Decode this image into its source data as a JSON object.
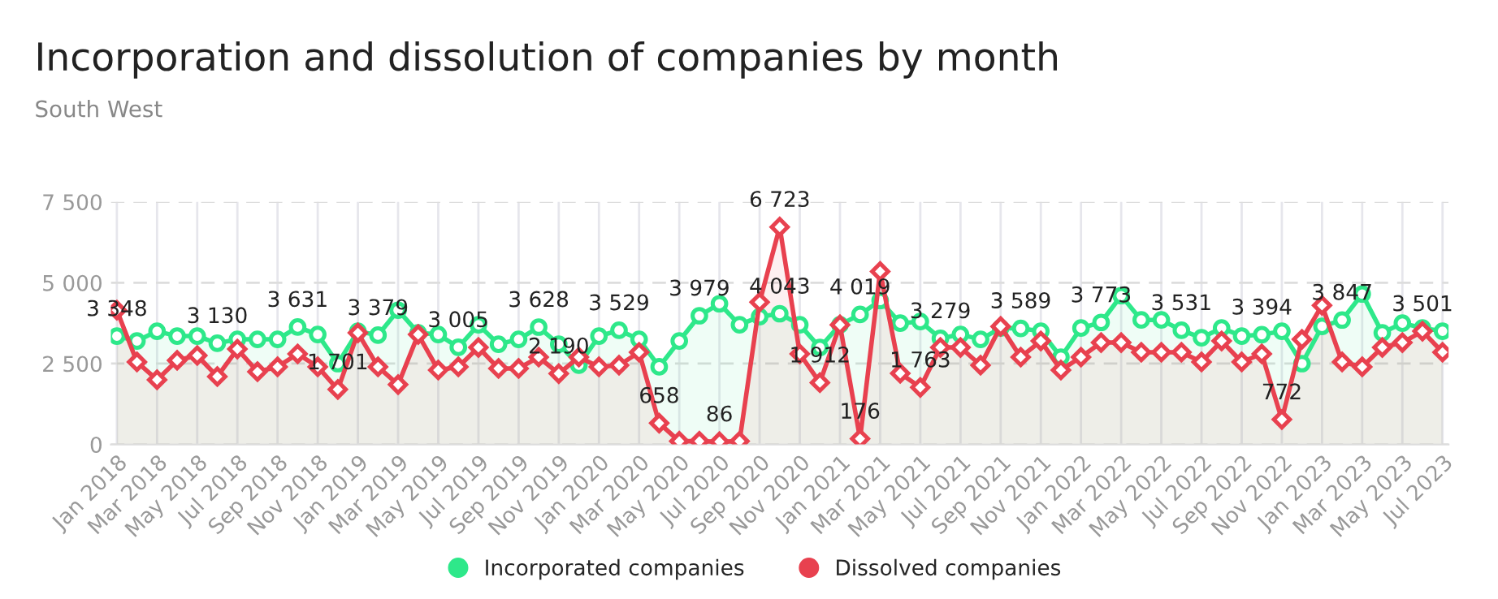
{
  "chart_data": {
    "type": "area",
    "title": "Incorporation and dissolution of companies by month",
    "subtitle": "South West",
    "categories": [
      "Jan 2018",
      null,
      "Mar 2018",
      null,
      "May 2018",
      null,
      "Jul 2018",
      null,
      "Sep 2018",
      null,
      "Nov 2018",
      null,
      "Jan 2019",
      null,
      "Mar 2019",
      null,
      "May 2019",
      null,
      "Jul 2019",
      null,
      "Sep 2019",
      null,
      "Nov 2019",
      null,
      "Jan 2020",
      null,
      "Mar 2020",
      null,
      "May 2020",
      null,
      "Jul 2020",
      null,
      "Sep 2020",
      null,
      "Nov 2020",
      null,
      "Jan 2021",
      null,
      "Mar 2021",
      null,
      "May 2021",
      null,
      "Jul 2021",
      null,
      "Sep 2021",
      null,
      "Nov 2021",
      null,
      "Jan 2022",
      null,
      "Mar 2022",
      null,
      "May 2022",
      null,
      "Jul 2022",
      null,
      "Sep 2022",
      null,
      "Nov 2022",
      null,
      "Jan 2023",
      null,
      "Mar 2023",
      null,
      "May 2023",
      null,
      "Jul 2023"
    ],
    "series": [
      {
        "name": "Incorporated companies",
        "color": "#2ee88a",
        "marker": "circle",
        "values": [
          3348,
          3200,
          3500,
          3350,
          3350,
          3130,
          3250,
          3250,
          3250,
          3631,
          3400,
          2500,
          3500,
          3379,
          4150,
          3450,
          3400,
          3005,
          3700,
          3100,
          3250,
          3628,
          3100,
          2450,
          3350,
          3529,
          3250,
          2400,
          3200,
          3979,
          4350,
          3700,
          3950,
          4043,
          3700,
          3000,
          3700,
          4019,
          4450,
          3750,
          3800,
          3279,
          3400,
          3250,
          3600,
          3589,
          3500,
          2700,
          3600,
          3773,
          4600,
          3850,
          3850,
          3531,
          3300,
          3600,
          3350,
          3394,
          3500,
          2500,
          3650,
          3847,
          4650,
          3450,
          3750,
          3600,
          3500
        ],
        "value_labels": [
          "3 348",
          null,
          null,
          null,
          null,
          "3 130",
          null,
          null,
          null,
          "3 631",
          null,
          null,
          null,
          "3 379",
          null,
          null,
          null,
          "3 005",
          null,
          null,
          null,
          "3 628",
          null,
          null,
          null,
          "3 529",
          null,
          null,
          null,
          "3 979",
          null,
          null,
          null,
          "4 043",
          null,
          null,
          null,
          "4 019",
          null,
          null,
          null,
          "3 279",
          null,
          null,
          null,
          "3 589",
          null,
          null,
          null,
          "3 773",
          null,
          null,
          null,
          "3 531",
          null,
          null,
          null,
          "3 394",
          null,
          null,
          null,
          "3 847",
          null,
          null,
          null,
          null,
          null
        ]
      },
      {
        "name": "Dissolved companies",
        "color": "#e8414f",
        "marker": "diamond",
        "values": [
          4150,
          2550,
          2000,
          2600,
          2750,
          2100,
          2950,
          2250,
          2400,
          2800,
          2400,
          1701,
          3450,
          2400,
          1850,
          3400,
          2300,
          2400,
          3000,
          2350,
          2350,
          2700,
          2190,
          2700,
          2400,
          2450,
          2850,
          658,
          100,
          100,
          86,
          100,
          4400,
          6723,
          2800,
          1912,
          3700,
          176,
          5350,
          2200,
          1763,
          3000,
          3000,
          2450,
          3650,
          2700,
          3200,
          2300,
          2700,
          3150,
          3150,
          2850,
          2850,
          2850,
          2550,
          3200,
          2550,
          2800,
          772,
          3250,
          4300,
          2550,
          2400,
          3000,
          3150,
          3501,
          2850
        ],
        "value_labels": [
          null,
          null,
          null,
          null,
          null,
          null,
          null,
          null,
          null,
          null,
          null,
          "1 701",
          null,
          null,
          null,
          null,
          null,
          null,
          null,
          null,
          null,
          null,
          "2 190",
          null,
          null,
          null,
          null,
          "658",
          null,
          null,
          "86",
          null,
          null,
          "6 723",
          null,
          "1 912",
          null,
          "176",
          null,
          null,
          "1 763",
          null,
          null,
          null,
          null,
          null,
          null,
          null,
          null,
          null,
          null,
          null,
          null,
          null,
          null,
          null,
          null,
          null,
          "772",
          null,
          null,
          null,
          null,
          null,
          null,
          "3 501",
          null
        ]
      }
    ],
    "ylim": [
      0,
      7500
    ],
    "yticks": [
      0,
      {
        "value": 2500,
        "label": "2 500"
      },
      {
        "value": 5000,
        "label": "5 000"
      },
      {
        "value": 7500,
        "label": "7 500"
      }
    ],
    "grid": true,
    "legend": "bottom",
    "line_style": "solid"
  }
}
